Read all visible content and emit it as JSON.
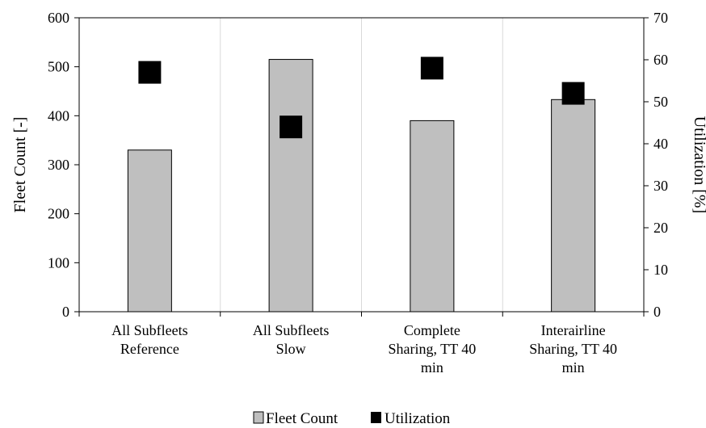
{
  "chart_data": {
    "type": "bar",
    "categories": [
      [
        "All Subfleets",
        "Reference"
      ],
      [
        "All Subfleets",
        "Slow"
      ],
      [
        "Complete",
        "Sharing, TT 40",
        "min"
      ],
      [
        "Interairline",
        "Sharing, TT 40",
        "min"
      ]
    ],
    "series": [
      {
        "name": "Fleet Count",
        "type": "bar",
        "axis": "left",
        "color": "#bfbfbf",
        "values": [
          330,
          515,
          390,
          433
        ]
      },
      {
        "name": "Utilization",
        "type": "scatter",
        "axis": "right",
        "marker": "square",
        "color": "#000000",
        "values": [
          57,
          44,
          58,
          52
        ]
      }
    ],
    "ylabel": "Fleet Count [-]",
    "y2label": "Utilization [%]",
    "ylim": [
      0,
      600
    ],
    "y2lim": [
      0,
      70
    ],
    "yticks": [
      "0",
      "100",
      "200",
      "300",
      "400",
      "500",
      "600"
    ],
    "y2ticks": [
      "0",
      "10",
      "20",
      "30",
      "40",
      "50",
      "60",
      "70"
    ],
    "grid": "vertical",
    "legend_position": "bottom"
  }
}
